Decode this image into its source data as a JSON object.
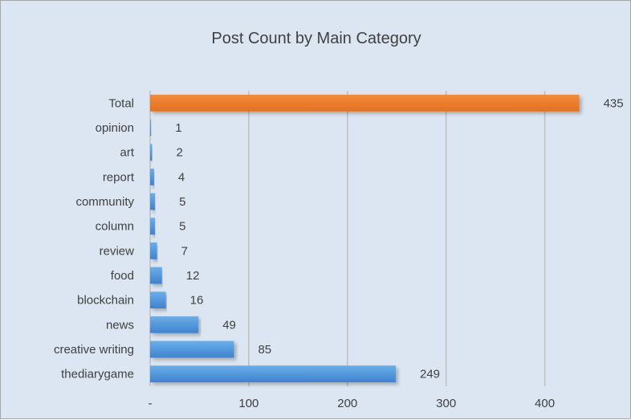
{
  "chart_data": {
    "type": "bar",
    "orientation": "horizontal",
    "title": "Post Count by Main Category",
    "categories": [
      "Total",
      "opinion",
      "art",
      "report",
      "community",
      "column",
      "review",
      "food",
      "blockchain",
      "news",
      "creative writing",
      "thediarygame"
    ],
    "values": [
      435,
      1,
      2,
      4,
      5,
      5,
      7,
      12,
      16,
      49,
      85,
      249
    ],
    "value_labels": [
      "435",
      "1",
      "2",
      "4",
      "5",
      "5",
      "7",
      "12",
      "16",
      "49",
      "85",
      "249"
    ],
    "xlim": [
      0,
      450
    ],
    "x_ticks": [
      0,
      100,
      200,
      300,
      400
    ],
    "x_tick_labels": [
      "-",
      "100",
      "200",
      "300",
      "400"
    ],
    "grid": "vertical",
    "legend": "none",
    "colors": {
      "highlight": "#ed7d31",
      "bar": "#4a90d9",
      "bar_light": "#6aaee8",
      "grid": "#bfbfbf",
      "background": "#dce6f2"
    },
    "highlight_category": "Total"
  }
}
